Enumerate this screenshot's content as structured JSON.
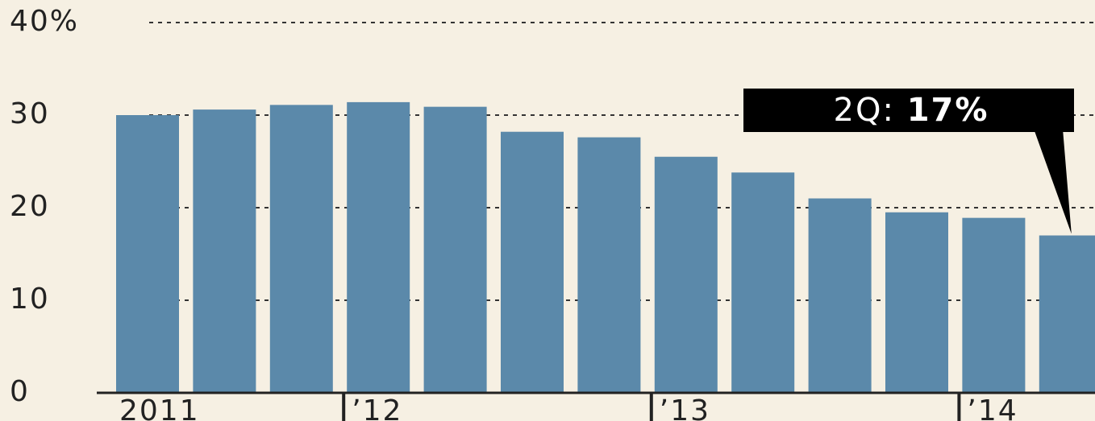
{
  "chart_data": {
    "type": "bar",
    "categories": [
      "2011",
      null,
      null,
      "’12",
      null,
      null,
      null,
      "’13",
      null,
      null,
      null,
      "’14",
      null
    ],
    "values": [
      30,
      30.6,
      31.1,
      31.4,
      30.9,
      28.2,
      27.6,
      25.5,
      23.8,
      21,
      19.5,
      18.9,
      17
    ],
    "color": "#5b89aa",
    "ylim": [
      0,
      40
    ],
    "yticks": [
      0,
      10,
      20,
      30,
      {
        "value": 40,
        "label": "40%"
      }
    ],
    "grid": true,
    "annotation": {
      "label": "2Q:",
      "value_text": "17%"
    }
  }
}
